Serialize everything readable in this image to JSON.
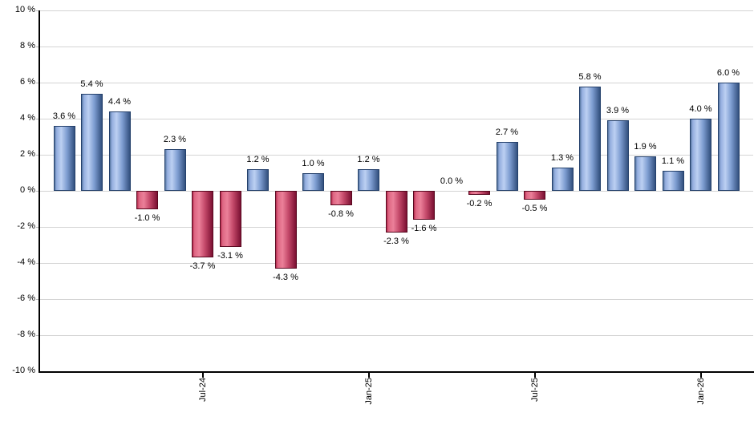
{
  "chart_data": {
    "type": "bar",
    "title": "",
    "xlabel": "",
    "ylabel": "",
    "unit": "%",
    "ylim": [
      -10,
      10
    ],
    "y_tick_step": 2,
    "grid": true,
    "legend_position": "none",
    "values": [
      3.6,
      5.4,
      4.4,
      -1.0,
      2.3,
      -3.7,
      -3.1,
      1.2,
      -4.3,
      1.0,
      -0.8,
      1.2,
      -2.3,
      -1.6,
      0.0,
      -0.2,
      2.7,
      -0.5,
      1.3,
      5.8,
      3.9,
      1.9,
      1.1,
      4.0,
      6.0
    ],
    "value_labels": [
      "3.6 %",
      "5.4 %",
      "4.4 %",
      "-1.0 %",
      "2.3 %",
      "-3.7 %",
      "-3.1 %",
      "1.2 %",
      "-4.3 %",
      "1.0 %",
      "-0.8 %",
      "1.2 %",
      "-2.3 %",
      "-1.6 %",
      "0.0 %",
      "-0.2 %",
      "2.7 %",
      "-0.5 %",
      "1.3 %",
      "5.8 %",
      "3.9 %",
      "1.9 %",
      "1.1 %",
      "4.0 %",
      "6.0 %"
    ],
    "y_ticks": [
      "10 %",
      "8 %",
      "6 %",
      "4 %",
      "2 %",
      "0 %",
      "-2 %",
      "-4 %",
      "-6 %",
      "-8 %",
      "-10 %"
    ],
    "x_ticks": [
      {
        "label": "Jul-24",
        "bar_index": 5
      },
      {
        "label": "Jan-25",
        "bar_index": 11
      },
      {
        "label": "Jul-25",
        "bar_index": 17
      },
      {
        "label": "Jan-26",
        "bar_index": 23
      }
    ],
    "colors": {
      "positive_gradient": [
        [
          "0%",
          "#54749e"
        ],
        [
          "10%",
          "#93adde"
        ],
        [
          "33%",
          "#bcd0f2"
        ],
        [
          "62%",
          "#7e9dd1"
        ],
        [
          "100%",
          "#32507e"
        ]
      ],
      "negative_gradient": [
        [
          "0%",
          "#b52b4e"
        ],
        [
          "10%",
          "#de6683"
        ],
        [
          "33%",
          "#eb8099"
        ],
        [
          "62%",
          "#c4496a"
        ],
        [
          "100%",
          "#7b1032"
        ]
      ],
      "positive_border": "#24406b",
      "negative_border": "#58081f",
      "gridline": "#d4d4d4",
      "axis": "#000000",
      "text": "#000000",
      "background": "#ffffff"
    }
  }
}
